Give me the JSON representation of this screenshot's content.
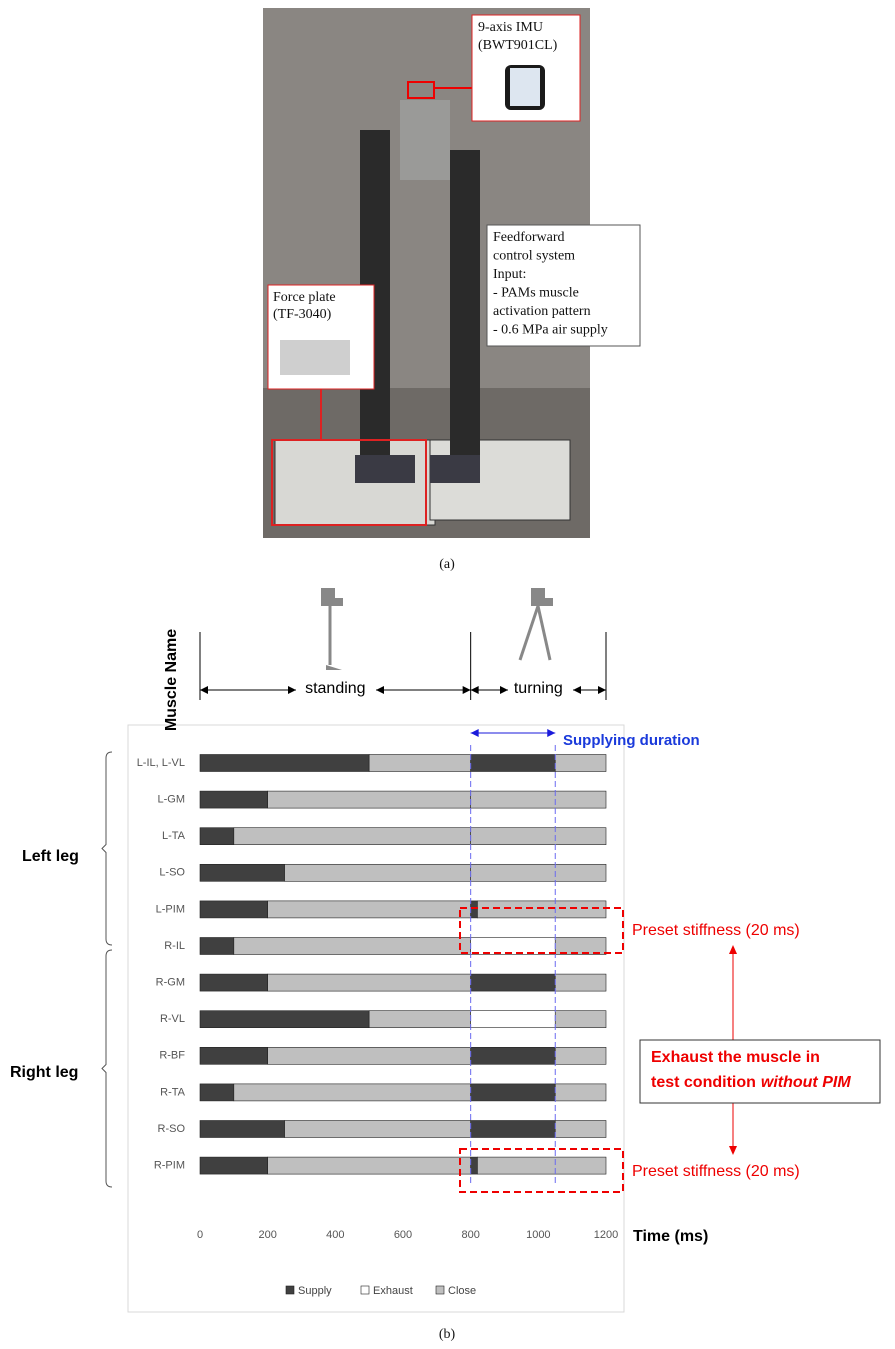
{
  "figure": {
    "label_a": "(a)",
    "label_b": "(b)",
    "photo": {
      "imu_title": "9-axis IMU",
      "imu_model": "(BWT901CL)",
      "control_lines": [
        "Feedforward",
        "control system",
        "Input:",
        "- PAMs muscle",
        "activation pattern",
        "- 0.6 MPa air supply"
      ],
      "plate_title": "Force plate",
      "plate_model": "(TF-3040)"
    }
  },
  "chart_data": {
    "type": "gantt",
    "y_label": "Muscle Name",
    "x_label": "Time (ms)",
    "phase_labels": [
      "standing",
      "turning"
    ],
    "guides": [
      800,
      1050
    ],
    "guide_label": "Supplying duration",
    "groups": [
      "Left leg",
      "Right leg"
    ],
    "annotations": {
      "preset_top": "Preset stiffness (20 ms)",
      "preset_bottom": "Preset stiffness (20 ms)",
      "exhaust_line1": "Exhaust the muscle in",
      "exhaust_line2": "test condition",
      "exhaust_italic": "without PIM"
    },
    "categories": [
      "L-IL, L-VL",
      "L-GM",
      "L-TA",
      "L-SO",
      "L-PIM",
      "R-IL",
      "R-GM",
      "R-VL",
      "R-BF",
      "R-TA",
      "R-SO",
      "R-PIM"
    ],
    "series": [
      {
        "name": "Supply",
        "color": "#404040"
      },
      {
        "name": "Exhaust",
        "color": "#ffffff"
      },
      {
        "name": "Close",
        "color": "#bfbfbf"
      }
    ],
    "segments": [
      [
        {
          "series": 0,
          "value": 500
        },
        {
          "series": 2,
          "value": 300
        },
        {
          "series": 0,
          "value": 250
        },
        {
          "series": 2,
          "value": 150
        }
      ],
      [
        {
          "series": 0,
          "value": 200
        },
        {
          "series": 2,
          "value": 600
        },
        {
          "series": 2,
          "value": 400
        }
      ],
      [
        {
          "series": 0,
          "value": 100
        },
        {
          "series": 2,
          "value": 700
        },
        {
          "series": 2,
          "value": 400
        }
      ],
      [
        {
          "series": 0,
          "value": 250
        },
        {
          "series": 2,
          "value": 550
        },
        {
          "series": 2,
          "value": 400
        }
      ],
      [
        {
          "series": 0,
          "value": 200
        },
        {
          "series": 2,
          "value": 600
        },
        {
          "series": 0,
          "value": 20
        },
        {
          "series": 2,
          "value": 380
        }
      ],
      [
        {
          "series": 0,
          "value": 100
        },
        {
          "series": 2,
          "value": 700
        },
        {
          "series": 1,
          "value": 250
        },
        {
          "series": 2,
          "value": 150
        }
      ],
      [
        {
          "series": 0,
          "value": 200
        },
        {
          "series": 2,
          "value": 600
        },
        {
          "series": 0,
          "value": 250
        },
        {
          "series": 2,
          "value": 150
        }
      ],
      [
        {
          "series": 0,
          "value": 500
        },
        {
          "series": 2,
          "value": 300
        },
        {
          "series": 1,
          "value": 250
        },
        {
          "series": 2,
          "value": 150
        }
      ],
      [
        {
          "series": 0,
          "value": 200
        },
        {
          "series": 2,
          "value": 600
        },
        {
          "series": 0,
          "value": 250
        },
        {
          "series": 2,
          "value": 150
        }
      ],
      [
        {
          "series": 0,
          "value": 100
        },
        {
          "series": 2,
          "value": 700
        },
        {
          "series": 0,
          "value": 250
        },
        {
          "series": 2,
          "value": 150
        }
      ],
      [
        {
          "series": 0,
          "value": 250
        },
        {
          "series": 2,
          "value": 550
        },
        {
          "series": 0,
          "value": 250
        },
        {
          "series": 2,
          "value": 150
        }
      ],
      [
        {
          "series": 0,
          "value": 200
        },
        {
          "series": 2,
          "value": 600
        },
        {
          "series": 0,
          "value": 20
        },
        {
          "series": 2,
          "value": 380
        }
      ]
    ],
    "xlim": [
      0,
      1200
    ],
    "xticks": [
      0,
      200,
      400,
      600,
      800,
      1000,
      1200
    ]
  }
}
